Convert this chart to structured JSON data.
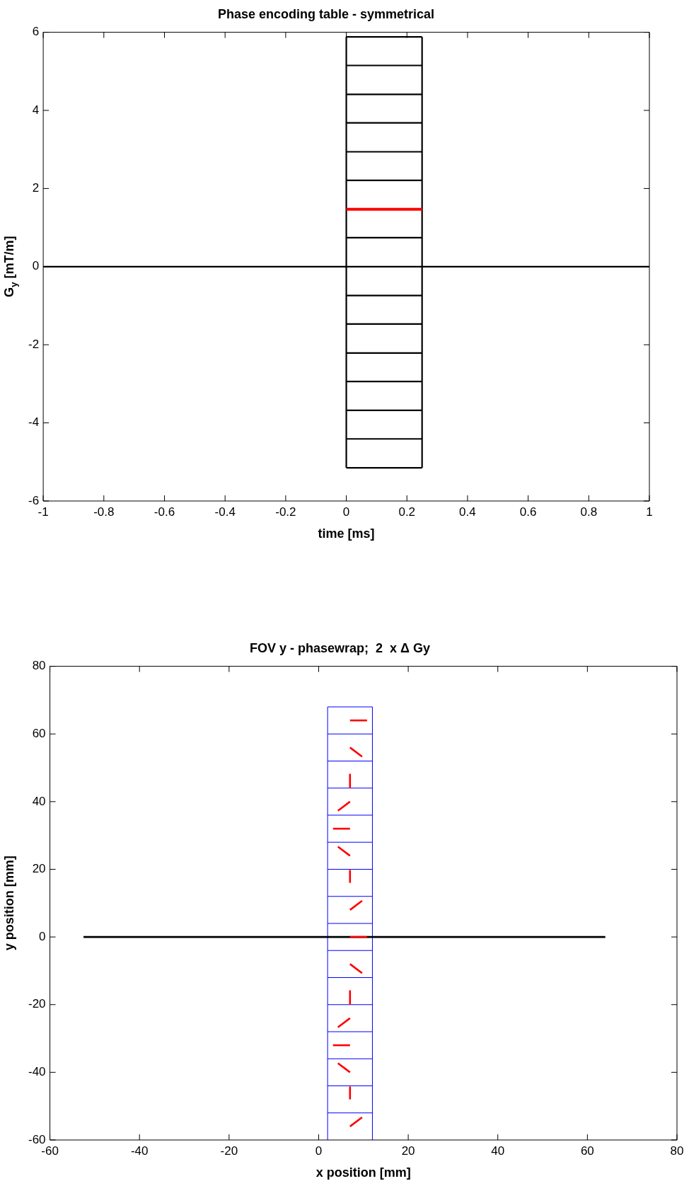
{
  "chart_data": [
    {
      "type": "line",
      "title": "Phase encoding table - symmetrical",
      "xlabel": "time [ms]",
      "ylabel": "G$_{y}$ [mT/m]",
      "xlim": [
        -1,
        1
      ],
      "xticks": [
        -1,
        -0.8,
        -0.6,
        -0.4,
        -0.2,
        0,
        0.2,
        0.4,
        0.6,
        0.8,
        1
      ],
      "ylim": [
        -6,
        6
      ],
      "yticks": [
        -6,
        -4,
        -2,
        0,
        2,
        4,
        6
      ],
      "series": [
        {
          "color": "#000000",
          "x": [
            0,
            0
          ],
          "values": [
            -5.15,
            5.88
          ]
        },
        {
          "color": "#000000",
          "x": [
            0.25,
            0.25
          ],
          "values": [
            -5.15,
            5.88
          ]
        },
        {
          "color": "#000000",
          "x": [
            0,
            0.25
          ],
          "values": [
            -5.15,
            -5.15
          ]
        },
        {
          "color": "#000000",
          "x": [
            0,
            0.25
          ],
          "values": [
            -4.41,
            -4.41
          ]
        },
        {
          "color": "#000000",
          "x": [
            0,
            0.25
          ],
          "values": [
            -3.68,
            -3.68
          ]
        },
        {
          "color": "#000000",
          "x": [
            0,
            0.25
          ],
          "values": [
            -2.94,
            -2.94
          ]
        },
        {
          "color": "#000000",
          "x": [
            0,
            0.25
          ],
          "values": [
            -2.21,
            -2.21
          ]
        },
        {
          "color": "#000000",
          "x": [
            0,
            0.25
          ],
          "values": [
            -1.47,
            -1.47
          ]
        },
        {
          "color": "#000000",
          "x": [
            0,
            0.25
          ],
          "values": [
            -0.74,
            -0.74
          ]
        },
        {
          "color": "#000000",
          "x": [
            0,
            0.25
          ],
          "values": [
            0.74,
            0.74
          ]
        },
        {
          "color": "#000000",
          "x": [
            0,
            0.25
          ],
          "values": [
            2.21,
            2.21
          ]
        },
        {
          "color": "#000000",
          "x": [
            0,
            0.25
          ],
          "values": [
            2.94,
            2.94
          ]
        },
        {
          "color": "#000000",
          "x": [
            0,
            0.25
          ],
          "values": [
            3.68,
            3.68
          ]
        },
        {
          "color": "#000000",
          "x": [
            0,
            0.25
          ],
          "values": [
            4.41,
            4.41
          ]
        },
        {
          "color": "#000000",
          "x": [
            0,
            0.25
          ],
          "values": [
            5.15,
            5.15
          ]
        },
        {
          "color": "#000000",
          "x": [
            0,
            0.25
          ],
          "values": [
            5.88,
            5.88
          ]
        },
        {
          "color": "#000000",
          "x": [
            -1,
            1
          ],
          "values": [
            0,
            0
          ]
        },
        {
          "color": "#ff0000",
          "x": [
            0,
            0.25
          ],
          "values": [
            1.47,
            1.47
          ]
        }
      ]
    },
    {
      "type": "line",
      "title": "FOV y - phasewrap;  2  x Δ Gy",
      "xlabel": "x position [mm]",
      "ylabel": "y position [mm]",
      "xlim": [
        -60,
        80
      ],
      "xticks": [
        -60,
        -40,
        -20,
        0,
        20,
        40,
        60,
        80
      ],
      "ylim": [
        -60,
        80
      ],
      "yticks": [
        -60,
        -40,
        -20,
        0,
        20,
        40,
        60,
        80
      ],
      "series": [
        {
          "color": "#0000ff",
          "x": [
            2,
            2
          ],
          "values": [
            -60,
            68
          ]
        },
        {
          "color": "#0000ff",
          "x": [
            12,
            12
          ],
          "values": [
            -60,
            68
          ]
        },
        {
          "color": "#0000ff",
          "x": [
            2,
            12
          ],
          "values": [
            68,
            68
          ]
        },
        {
          "color": "#0000ff",
          "x": [
            2,
            12
          ],
          "values": [
            60,
            60
          ]
        },
        {
          "color": "#0000ff",
          "x": [
            2,
            12
          ],
          "values": [
            52,
            52
          ]
        },
        {
          "color": "#0000ff",
          "x": [
            2,
            12
          ],
          "values": [
            44,
            44
          ]
        },
        {
          "color": "#0000ff",
          "x": [
            2,
            12
          ],
          "values": [
            36,
            36
          ]
        },
        {
          "color": "#0000ff",
          "x": [
            2,
            12
          ],
          "values": [
            28,
            28
          ]
        },
        {
          "color": "#0000ff",
          "x": [
            2,
            12
          ],
          "values": [
            20,
            20
          ]
        },
        {
          "color": "#0000ff",
          "x": [
            2,
            12
          ],
          "values": [
            12,
            12
          ]
        },
        {
          "color": "#0000ff",
          "x": [
            2,
            12
          ],
          "values": [
            4,
            4
          ]
        },
        {
          "color": "#0000ff",
          "x": [
            2,
            12
          ],
          "values": [
            -4,
            -4
          ]
        },
        {
          "color": "#0000ff",
          "x": [
            2,
            12
          ],
          "values": [
            -12,
            -12
          ]
        },
        {
          "color": "#0000ff",
          "x": [
            2,
            12
          ],
          "values": [
            -20,
            -20
          ]
        },
        {
          "color": "#0000ff",
          "x": [
            2,
            12
          ],
          "values": [
            -28,
            -28
          ]
        },
        {
          "color": "#0000ff",
          "x": [
            2,
            12
          ],
          "values": [
            -36,
            -36
          ]
        },
        {
          "color": "#0000ff",
          "x": [
            2,
            12
          ],
          "values": [
            -44,
            -44
          ]
        },
        {
          "color": "#0000ff",
          "x": [
            2,
            12
          ],
          "values": [
            -52,
            -52
          ]
        },
        {
          "color": "#000000",
          "x": [
            -52.5,
            64
          ],
          "values": [
            0,
            0
          ]
        },
        {
          "color": "#ff0000",
          "x": [
            7,
            10.8
          ],
          "values": [
            64,
            64
          ]
        },
        {
          "color": "#ff0000",
          "x": [
            7,
            9.7
          ],
          "values": [
            56,
            53.3
          ]
        },
        {
          "color": "#ff0000",
          "x": [
            7,
            7
          ],
          "values": [
            48,
            44.2
          ]
        },
        {
          "color": "#ff0000",
          "x": [
            7,
            4.3
          ],
          "values": [
            40,
            37.3
          ]
        },
        {
          "color": "#ff0000",
          "x": [
            7,
            3.2
          ],
          "values": [
            32,
            32
          ]
        },
        {
          "color": "#ff0000",
          "x": [
            7,
            4.3
          ],
          "values": [
            24,
            26.7
          ]
        },
        {
          "color": "#ff0000",
          "x": [
            7,
            7
          ],
          "values": [
            16,
            19.8
          ]
        },
        {
          "color": "#ff0000",
          "x": [
            7,
            9.7
          ],
          "values": [
            8,
            10.7
          ]
        },
        {
          "color": "#ff0000",
          "x": [
            7,
            10.8
          ],
          "values": [
            0,
            0
          ]
        },
        {
          "color": "#ff0000",
          "x": [
            7,
            9.7
          ],
          "values": [
            -8,
            -10.7
          ]
        },
        {
          "color": "#ff0000",
          "x": [
            7,
            7
          ],
          "values": [
            -16,
            -19.8
          ]
        },
        {
          "color": "#ff0000",
          "x": [
            7,
            4.3
          ],
          "values": [
            -24,
            -26.7
          ]
        },
        {
          "color": "#ff0000",
          "x": [
            7,
            3.2
          ],
          "values": [
            -32,
            -32
          ]
        },
        {
          "color": "#ff0000",
          "x": [
            7,
            4.3
          ],
          "values": [
            -40,
            -37.3
          ]
        },
        {
          "color": "#ff0000",
          "x": [
            7,
            7
          ],
          "values": [
            -48,
            -44.2
          ]
        },
        {
          "color": "#ff0000",
          "x": [
            7,
            9.7
          ],
          "values": [
            -56,
            -53.3
          ]
        }
      ]
    }
  ]
}
